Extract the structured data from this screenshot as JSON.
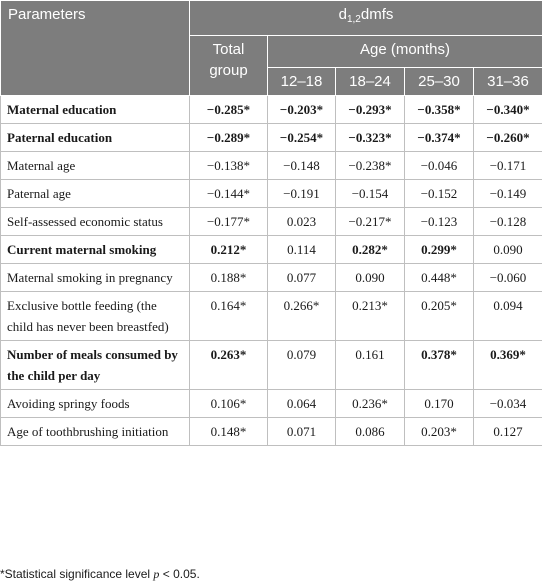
{
  "header": {
    "parameters": "Parameters",
    "measure_main": "d",
    "measure_sub": "1,2",
    "measure_rest": "dmfs",
    "total_group": "Total group",
    "age_months": "Age (months)",
    "age_groups": [
      "12–18",
      "18–24",
      "25–30",
      "31–36"
    ]
  },
  "rows": [
    {
      "label": "Maternal education",
      "bold": true,
      "values": [
        "−0.285*",
        "−0.203*",
        "−0.293*",
        "−0.358*",
        "−0.340*"
      ]
    },
    {
      "label": "Paternal education",
      "bold": true,
      "values": [
        "−0.289*",
        "−0.254*",
        "−0.323*",
        "−0.374*",
        "−0.260*"
      ]
    },
    {
      "label": "Maternal age",
      "bold": false,
      "values": [
        "−0.138*",
        "−0.148",
        "−0.238*",
        "−0.046",
        "−0.171"
      ]
    },
    {
      "label": "Paternal age",
      "bold": false,
      "values": [
        "−0.144*",
        "−0.191",
        "−0.154",
        "−0.152",
        "−0.149"
      ]
    },
    {
      "label": "Self-assessed economic status",
      "bold": false,
      "values": [
        "−0.177*",
        "0.023",
        "−0.217*",
        "−0.123",
        "−0.128"
      ]
    },
    {
      "label": "Current maternal smoking",
      "bold": true,
      "values": [
        "0.212*",
        "0.114",
        "0.282*",
        "0.299*",
        "0.090"
      ],
      "bold_cells": [
        true,
        false,
        true,
        true,
        false
      ]
    },
    {
      "label": "Maternal smoking in pregnancy",
      "bold": false,
      "values": [
        "0.188*",
        "0.077",
        "0.090",
        "0.448*",
        "−0.060"
      ]
    },
    {
      "label": "Exclusive bottle feeding (the child has never been breastfed)",
      "bold": false,
      "values": [
        "0.164*",
        "0.266*",
        "0.213*",
        "0.205*",
        "0.094"
      ]
    },
    {
      "label": "Number of meals consumed by the child per day",
      "bold": true,
      "values": [
        "0.263*",
        "0.079",
        "0.161",
        "0.378*",
        "0.369*"
      ],
      "bold_cells": [
        true,
        false,
        false,
        true,
        true
      ]
    },
    {
      "label": "Avoiding springy foods",
      "bold": false,
      "values": [
        "0.106*",
        "0.064",
        "0.236*",
        "0.170",
        "−0.034"
      ]
    },
    {
      "label": "Age of toothbrushing initiation",
      "bold": false,
      "values": [
        "0.148*",
        "0.071",
        "0.086",
        "0.203*",
        "0.127"
      ]
    }
  ],
  "footnote": {
    "prefix": "*Statistical significance level ",
    "p": "p",
    "suffix": " < 0.05."
  }
}
